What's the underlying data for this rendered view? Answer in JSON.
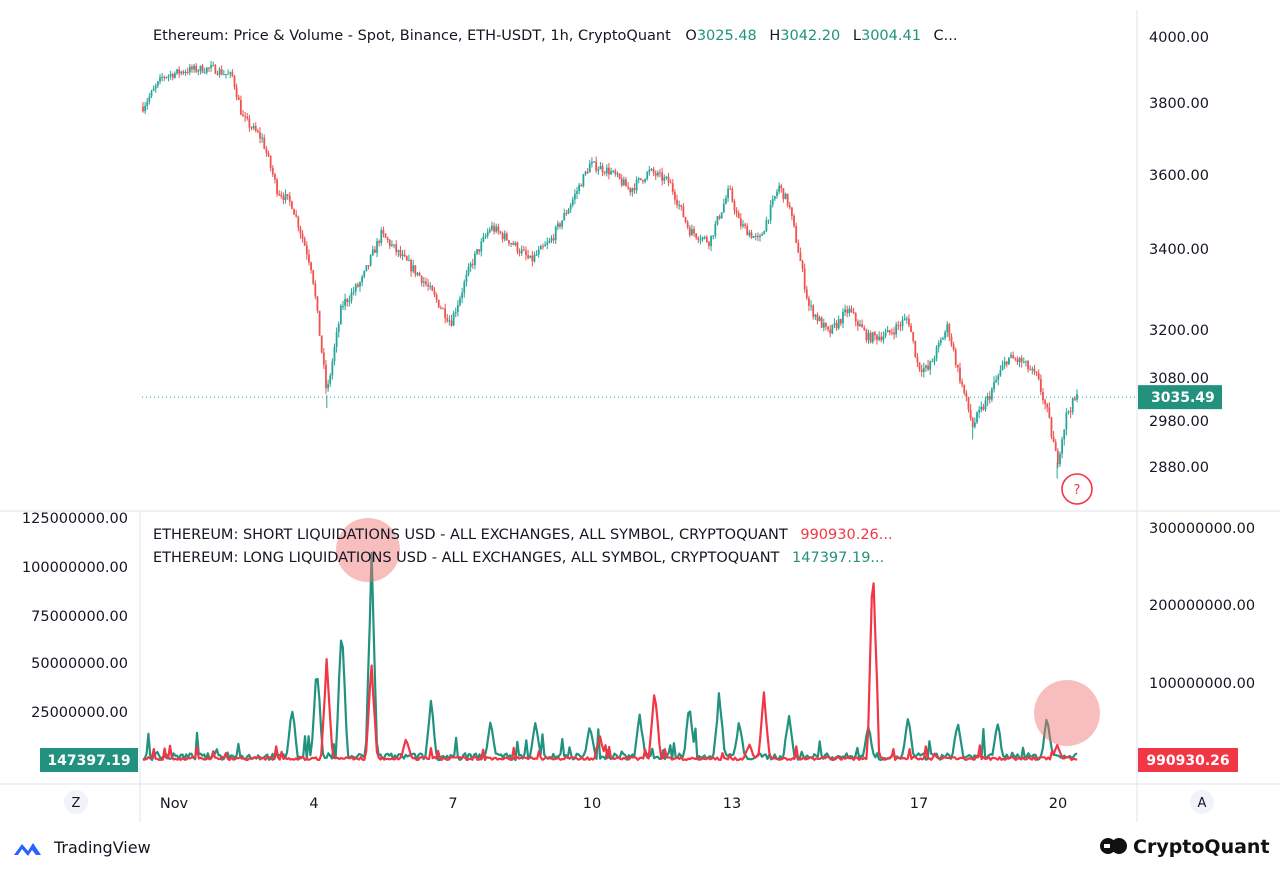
{
  "colors": {
    "up": "#26a69a",
    "down": "#ef5350",
    "accent_teal": "#22927f",
    "accent_red": "#f23645",
    "grid": "#e0e3eb",
    "text": "#131722",
    "muted": "#787b86",
    "highlight": "rgba(240,110,110,0.45)"
  },
  "price_pane": {
    "legend_title": "Ethereum: Price & Volume - Spot, Binance, ETH-USDT, 1h, CryptoQuant",
    "open_label": "O",
    "open_value": "3025.48",
    "high_label": "H",
    "high_value": "3042.20",
    "low_label": "L",
    "low_value": "3004.41",
    "close_label": "C...",
    "axis_ticks": [
      "4000.00",
      "3800.00",
      "3600.00",
      "3400.00",
      "3200.00",
      "3080.00",
      "2980.00",
      "2880.00"
    ],
    "last_price_badge": "3035.49",
    "question_marker": "?"
  },
  "liq_pane": {
    "short_legend": "ETHEREUM: SHORT LIQUIDATIONS USD - ALL EXCHANGES, ALL SYMBOL, CRYPTOQUANT",
    "short_value": "990930.26...",
    "long_legend": "ETHEREUM: LONG LIQUIDATIONS USD - ALL EXCHANGES, ALL SYMBOL, CRYPTOQUANT",
    "long_value": "147397.19...",
    "left_ticks": [
      "125000000.00",
      "100000000.00",
      "75000000.00",
      "50000000.00",
      "25000000.00"
    ],
    "right_ticks": [
      "300000000.00",
      "200000000.00",
      "100000000.00"
    ],
    "left_badge": "147397.19",
    "right_badge": "990930.26"
  },
  "time_axis": {
    "labels": [
      "Nov",
      "4",
      "7",
      "10",
      "13",
      "17",
      "20"
    ],
    "left_button": "Z",
    "right_button": "A"
  },
  "branding": {
    "tradingview_label": "TradingView",
    "cryptoquant_label": "CryptoQuant"
  },
  "chart_data": [
    {
      "type": "candlestick",
      "title": "Ethereum: Price & Volume - Spot, Binance, ETH-USDT, 1h, CryptoQuant",
      "x_range": [
        "Nov 1",
        "Nov 20"
      ],
      "ylim": [
        2800,
        4050
      ],
      "y_scale": "log",
      "last_price": 3035.49,
      "close_path": [
        [
          0,
          3790
        ],
        [
          2,
          3880
        ],
        [
          4.5,
          3900
        ],
        [
          7,
          3905
        ],
        [
          9,
          3880
        ],
        [
          10,
          3760
        ],
        [
          12,
          3700
        ],
        [
          13.5,
          3560
        ],
        [
          15,
          3520
        ],
        [
          17,
          3350
        ],
        [
          18.5,
          3040
        ],
        [
          20,
          3260
        ],
        [
          22,
          3320
        ],
        [
          24,
          3440
        ],
        [
          26,
          3380
        ],
        [
          28,
          3330
        ],
        [
          31,
          3220
        ],
        [
          33,
          3360
        ],
        [
          35,
          3460
        ],
        [
          37,
          3420
        ],
        [
          39,
          3370
        ],
        [
          41,
          3420
        ],
        [
          43,
          3520
        ],
        [
          45,
          3630
        ],
        [
          47,
          3610
        ],
        [
          49,
          3560
        ],
        [
          51,
          3610
        ],
        [
          53,
          3580
        ],
        [
          55,
          3450
        ],
        [
          57,
          3420
        ],
        [
          59,
          3560
        ],
        [
          60,
          3470
        ],
        [
          62,
          3420
        ],
        [
          64,
          3570
        ],
        [
          65,
          3520
        ],
        [
          67,
          3260
        ],
        [
          69,
          3190
        ],
        [
          71,
          3250
        ],
        [
          73,
          3180
        ],
        [
          75,
          3190
        ],
        [
          77,
          3230
        ],
        [
          78,
          3110
        ],
        [
          79,
          3100
        ],
        [
          81,
          3210
        ],
        [
          82,
          3100
        ],
        [
          83.5,
          2970
        ],
        [
          85,
          3030
        ],
        [
          87,
          3130
        ],
        [
          88.5,
          3120
        ],
        [
          90,
          3080
        ],
        [
          91,
          3000
        ],
        [
          92,
          2890
        ],
        [
          93,
          3000
        ],
        [
          94,
          3035
        ]
      ]
    },
    {
      "type": "line",
      "title": "Liquidations USD",
      "x_range": [
        "Nov 1",
        "Nov 20"
      ],
      "series": [
        {
          "name": "ETHEREUM: SHORT LIQUIDATIONS USD - ALL EXCHANGES, ALL SYMBOL, CRYPTOQUANT",
          "axis": "right",
          "ylim": [
            0,
            300000000
          ],
          "last_value": 990930.26,
          "spikes": [
            [
              18.5,
              140000000
            ],
            [
              23,
              130000000
            ],
            [
              26.5,
              30000000
            ],
            [
              46,
              32000000
            ],
            [
              51.5,
              105000000
            ],
            [
              61,
              22000000
            ],
            [
              62.5,
              90000000
            ],
            [
              73.5,
              280000000
            ],
            [
              92,
              20000000
            ]
          ]
        },
        {
          "name": "ETHEREUM: LONG LIQUIDATIONS USD - ALL EXCHANGES, ALL SYMBOL, CRYPTOQUANT",
          "axis": "left",
          "ylim": [
            0,
            125000000
          ],
          "last_value": 147397.19,
          "spikes": [
            [
              15,
              30000000
            ],
            [
              17.5,
              55000000
            ],
            [
              20,
              78000000
            ],
            [
              23,
              110000000
            ],
            [
              29,
              32000000
            ],
            [
              35,
              22000000
            ],
            [
              39.5,
              22000000
            ],
            [
              45,
              20000000
            ],
            [
              50,
              25000000
            ],
            [
              55,
              32000000
            ],
            [
              58,
              38000000
            ],
            [
              60,
              22000000
            ],
            [
              65,
              25000000
            ],
            [
              73,
              20000000
            ],
            [
              77,
              25000000
            ],
            [
              82,
              22000000
            ],
            [
              86,
              20000000
            ],
            [
              91,
              25000000
            ]
          ]
        }
      ]
    }
  ]
}
